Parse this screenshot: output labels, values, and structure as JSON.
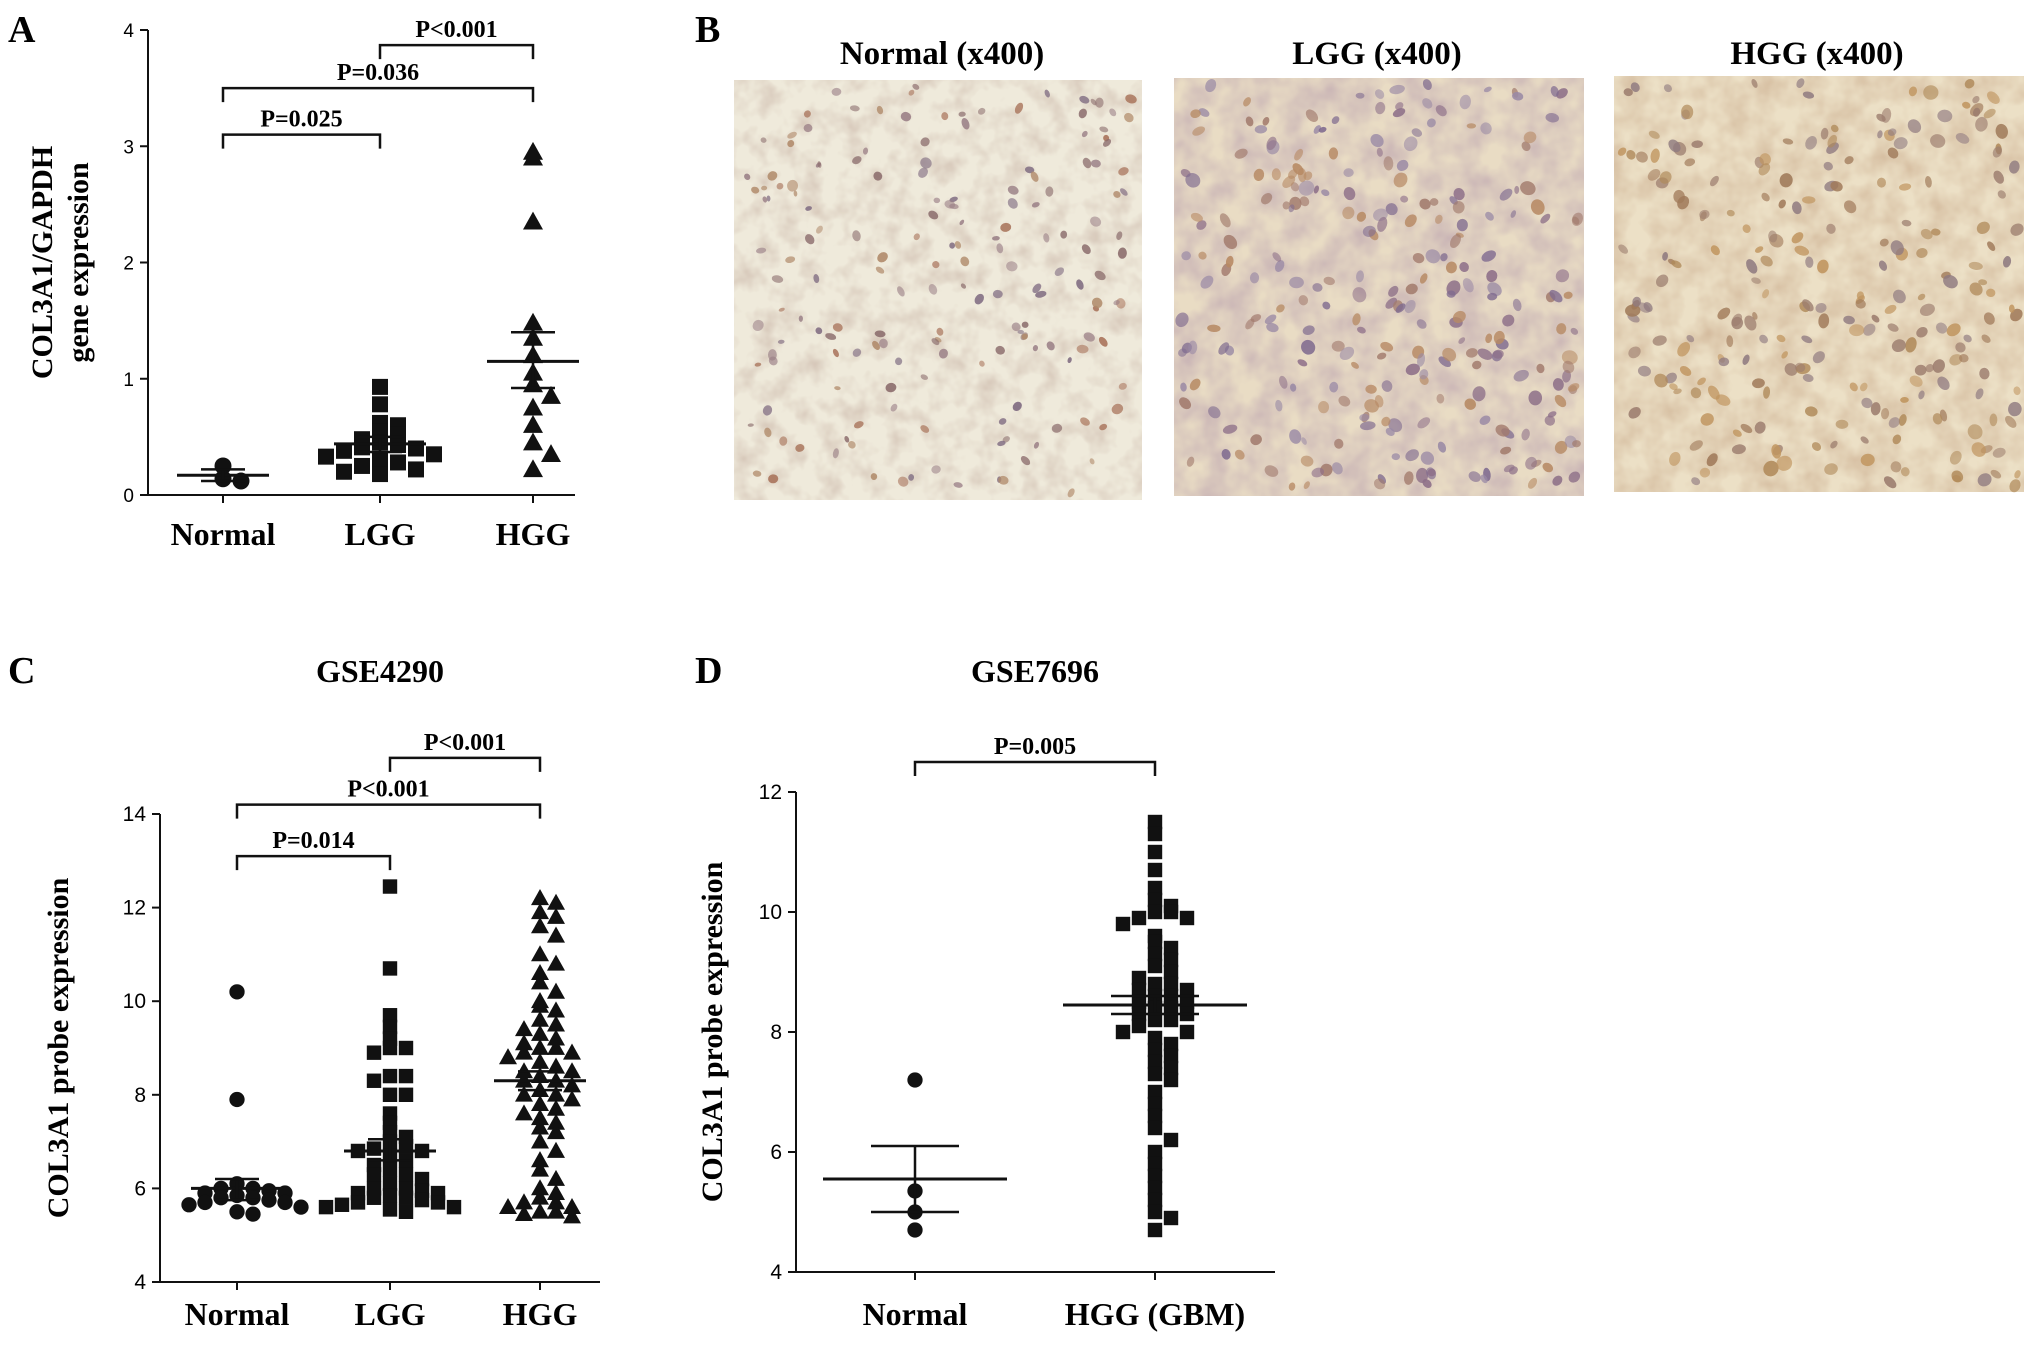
{
  "panels": {
    "A": {
      "letter": "A",
      "chart_data": {
        "type": "scatter",
        "title": "",
        "ylabel_lines": [
          "COL3A1/GAPDH",
          "gene expression"
        ],
        "ylim": [
          0,
          4
        ],
        "yticks": [
          "0",
          "1",
          "2",
          "3",
          "4"
        ],
        "categories": [
          "Normal",
          "LGG",
          "HGG"
        ],
        "series": [
          {
            "category": "Normal",
            "marker": "circle",
            "mean": 0.17,
            "sem_low": 0.12,
            "sem_high": 0.22,
            "values": [
              0.25,
              0.14,
              0.12
            ]
          },
          {
            "category": "LGG",
            "marker": "square",
            "mean": 0.44,
            "sem_low": 0.37,
            "sem_high": 0.5,
            "values": [
              0.93,
              0.78,
              0.62,
              0.6,
              0.55,
              0.52,
              0.48,
              0.45,
              0.43,
              0.41,
              0.4,
              0.38,
              0.35,
              0.33,
              0.3,
              0.28,
              0.25,
              0.22,
              0.2,
              0.18
            ]
          },
          {
            "category": "HGG",
            "marker": "triangle",
            "mean": 1.15,
            "sem_low": 0.92,
            "sem_high": 1.4,
            "values": [
              2.95,
              2.9,
              2.35,
              1.48,
              1.35,
              1.2,
              1.05,
              0.95,
              0.85,
              0.75,
              0.6,
              0.45,
              0.35,
              0.22
            ]
          }
        ],
        "comparisons": [
          {
            "from": "Normal",
            "to": "LGG",
            "label": "P=0.025",
            "y": 3.1
          },
          {
            "from": "Normal",
            "to": "HGG",
            "label": "P=0.036",
            "y": 3.5
          },
          {
            "from": "LGG",
            "to": "HGG",
            "label": "P<0.001",
            "y": 3.87
          }
        ]
      }
    },
    "B": {
      "letter": "B",
      "images": [
        {
          "title": "Normal (x400)",
          "name": "normal-ihc-image"
        },
        {
          "title": "LGG (x400)",
          "name": "lgg-ihc-image"
        },
        {
          "title": "HGG (x400)",
          "name": "hgg-ihc-image"
        }
      ]
    },
    "C": {
      "letter": "C",
      "chart_data": {
        "type": "scatter",
        "title": "GSE4290",
        "ylabel_lines": [
          "COL3A1 probe expression"
        ],
        "ylim": [
          4,
          14
        ],
        "yticks": [
          "4",
          "6",
          "8",
          "10",
          "12",
          "14"
        ],
        "categories": [
          "Normal",
          "LGG",
          "HGG"
        ],
        "series": [
          {
            "category": "Normal",
            "marker": "circle",
            "mean": 6.0,
            "sem_low": 5.75,
            "sem_high": 6.2,
            "values": [
              10.2,
              7.9,
              6.1,
              6.0,
              6.0,
              5.95,
              5.9,
              5.9,
              5.85,
              5.8,
              5.8,
              5.75,
              5.7,
              5.7,
              5.65,
              5.6,
              5.5,
              5.45
            ]
          },
          {
            "category": "LGG",
            "marker": "square",
            "mean": 6.8,
            "sem_low": 6.6,
            "sem_high": 7.05,
            "values": [
              12.45,
              10.7,
              9.7,
              9.45,
              9.2,
              9.0,
              9.0,
              8.9,
              8.4,
              8.4,
              8.3,
              8.0,
              8.0,
              7.6,
              7.4,
              7.2,
              7.1,
              7.0,
              6.9,
              6.85,
              6.8,
              6.8,
              6.7,
              6.6,
              6.5,
              6.4,
              6.3,
              6.3,
              6.2,
              6.1,
              6.0,
              6.0,
              5.95,
              5.9,
              5.9,
              5.85,
              5.8,
              5.8,
              5.75,
              5.7,
              5.7,
              5.65,
              5.6,
              5.6,
              5.55,
              5.5
            ]
          },
          {
            "category": "HGG",
            "marker": "triangle",
            "mean": 8.3,
            "sem_low": 8.1,
            "sem_high": 8.5,
            "values": [
              12.2,
              12.1,
              11.9,
              11.8,
              11.6,
              11.4,
              11.0,
              10.8,
              10.6,
              10.4,
              10.2,
              10.0,
              9.9,
              9.8,
              9.6,
              9.5,
              9.4,
              9.3,
              9.2,
              9.1,
              9.0,
              9.0,
              8.9,
              8.9,
              8.8,
              8.7,
              8.6,
              8.5,
              8.5,
              8.4,
              8.3,
              8.3,
              8.2,
              8.1,
              8.0,
              8.0,
              7.9,
              7.8,
              7.7,
              7.6,
              7.5,
              7.4,
              7.3,
              7.2,
              7.0,
              6.8,
              6.6,
              6.4,
              6.2,
              6.0,
              5.9,
              5.8,
              5.7,
              5.7,
              5.6,
              5.6,
              5.5,
              5.5,
              5.45,
              5.4
            ]
          }
        ],
        "comparisons": [
          {
            "from": "Normal",
            "to": "LGG",
            "label": "P=0.014",
            "y": 13.1
          },
          {
            "from": "Normal",
            "to": "HGG",
            "label": "P<0.001",
            "y": 14.2
          },
          {
            "from": "LGG",
            "to": "HGG",
            "label": "P<0.001",
            "y": 15.2
          }
        ]
      }
    },
    "D": {
      "letter": "D",
      "chart_data": {
        "type": "scatter",
        "title": "GSE7696",
        "ylabel_lines": [
          "COL3A1 probe expression"
        ],
        "ylim": [
          4,
          12
        ],
        "yticks": [
          "4",
          "6",
          "8",
          "10",
          "12"
        ],
        "categories": [
          "Normal",
          "HGG (GBM)"
        ],
        "series": [
          {
            "category": "Normal",
            "marker": "circle",
            "mean": 5.55,
            "sem_low": 5.0,
            "sem_high": 6.1,
            "values": [
              7.2,
              5.35,
              5.0,
              4.7
            ]
          },
          {
            "category": "HGG (GBM)",
            "marker": "square",
            "mean": 8.45,
            "sem_low": 8.3,
            "sem_high": 8.6,
            "values": [
              11.5,
              11.3,
              11.0,
              10.7,
              10.4,
              10.2,
              10.1,
              10.0,
              10.0,
              9.9,
              9.9,
              9.8,
              9.6,
              9.5,
              9.4,
              9.3,
              9.2,
              9.1,
              9.0,
              8.9,
              8.8,
              8.8,
              8.7,
              8.7,
              8.6,
              8.6,
              8.5,
              8.5,
              8.4,
              8.4,
              8.3,
              8.3,
              8.2,
              8.2,
              8.1,
              8.0,
              8.0,
              7.9,
              7.8,
              7.7,
              7.6,
              7.5,
              7.4,
              7.3,
              7.2,
              7.0,
              6.8,
              6.6,
              6.4,
              6.2,
              6.0,
              5.8,
              5.6,
              5.4,
              5.2,
              5.0,
              4.9,
              4.7
            ]
          }
        ],
        "comparisons": [
          {
            "from": "Normal",
            "to": "HGG (GBM)",
            "label": "P=0.005",
            "y": 12.5
          }
        ]
      }
    }
  }
}
